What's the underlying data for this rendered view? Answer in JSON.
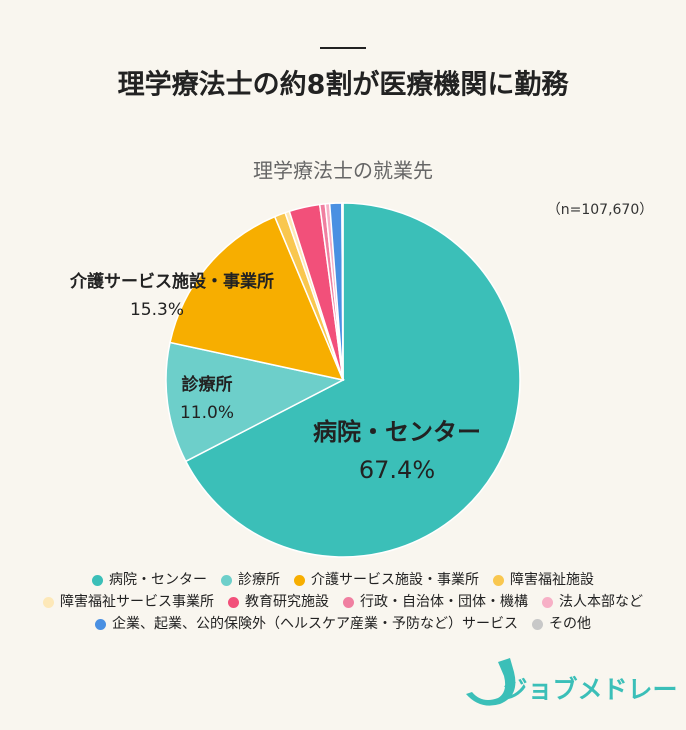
{
  "chart_data": {
    "type": "pie",
    "title": "理学療法士の約8割が医療機関に勤務",
    "subtitle": "理学療法士の就業先",
    "annotation": "（n=107,670）",
    "brand": "ジョブメドレー",
    "categories": [
      "病院・センター",
      "診療所",
      "介護サービス施設・事業所",
      "障害福祉施設",
      "障害福祉サービス事業所",
      "教育研究施設",
      "行政・自治体・団体・機構",
      "法人本部など",
      "企業、起業、公的保険外（ヘルスケア産業・予防など）サービス",
      "その他"
    ],
    "values": [
      67.4,
      11.0,
      15.3,
      1.0,
      0.4,
      2.8,
      0.5,
      0.4,
      1.1,
      0.1
    ],
    "value_labels": [
      "67.4%",
      "11.0%",
      "15.3%",
      null,
      null,
      null,
      null,
      null,
      null,
      null
    ],
    "colors": [
      "#3bbfb8",
      "#6dcfca",
      "#f7ae00",
      "#f9c74f",
      "#fde8b8",
      "#f2507a",
      "#f07fa0",
      "#f7b0c6",
      "#4a90e2",
      "#c8c8c8"
    ]
  }
}
